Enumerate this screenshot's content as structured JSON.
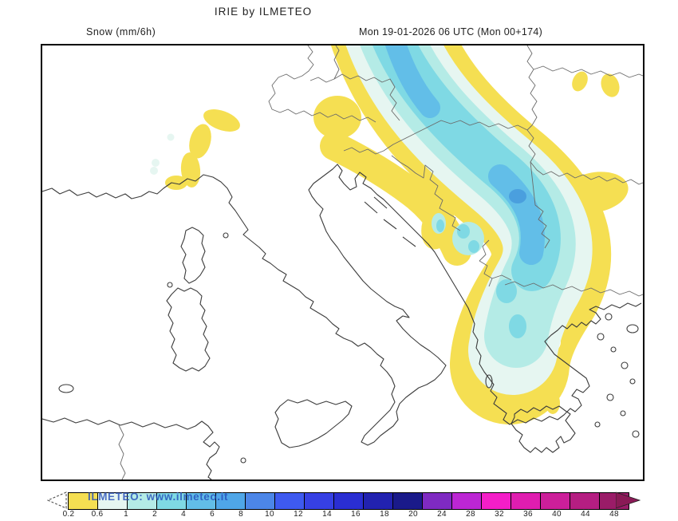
{
  "header": {
    "title": "IRIE by ILMETEO",
    "variable": "Snow (mm/6h)",
    "validity": "Mon 19-01-2026 06 UTC (Mon 00+174)"
  },
  "watermark": "ILMETEO: www.ilmeteo.it",
  "colorbar": {
    "unit": "mm/6h",
    "ticks": [
      "0.2",
      "0.6",
      "1",
      "2",
      "4",
      "6",
      "8",
      "10",
      "12",
      "14",
      "16",
      "18",
      "20",
      "24",
      "28",
      "32",
      "36",
      "40",
      "44",
      "48"
    ],
    "segment_colors": [
      "#F5DF52",
      "#E6F6F1",
      "#B4EBE6",
      "#7FD9E4",
      "#62BEE8",
      "#4FA6E8",
      "#4C86E8",
      "#3E5AF0",
      "#3640E4",
      "#2A2ED2",
      "#2222B0",
      "#1A1A8A",
      "#7F2AC2",
      "#BC26D4",
      "#F41EC8",
      "#E01DB0",
      "#CC1F9A",
      "#B51E82",
      "#9A1C68"
    ],
    "overflow_arrow_color": "#8A1A56",
    "underflow_style": "dashed-outline-white"
  },
  "map": {
    "region": "Italy, Adriatic Sea and Balkans",
    "levels": [
      {
        "range": "0.2-0.6",
        "color": "#F5DF52"
      },
      {
        "range": "0.6-1",
        "color": "#E6F6F1"
      },
      {
        "range": "1-2",
        "color": "#B4EBE6"
      },
      {
        "range": "2-4",
        "color": "#7FD9E4"
      },
      {
        "range": "4-6",
        "color": "#62BEE8"
      },
      {
        "range": "6-8",
        "color": "#4A9FDE"
      }
    ]
  }
}
